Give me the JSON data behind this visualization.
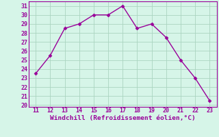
{
  "x": [
    11,
    12,
    13,
    14,
    15,
    16,
    17,
    18,
    19,
    20,
    21,
    22,
    23
  ],
  "y": [
    23.5,
    25.5,
    28.5,
    29.0,
    30.0,
    30.0,
    31.0,
    28.5,
    29.0,
    27.5,
    25.0,
    23.0,
    20.5
  ],
  "line_color": "#990099",
  "marker": "D",
  "marker_size": 2.5,
  "line_width": 1.0,
  "xlabel": "Windchill (Refroidissement éolien,°C)",
  "xlabel_color": "#990099",
  "xlabel_fontsize": 6.8,
  "background_color": "#d6f5e8",
  "plot_bg_color": "#d6f5e8",
  "grid_color": "#aad4c0",
  "tick_color": "#990099",
  "tick_fontsize": 6.0,
  "xlim": [
    10.5,
    23.5
  ],
  "ylim": [
    19.8,
    31.5
  ],
  "yticks": [
    20,
    21,
    22,
    23,
    24,
    25,
    26,
    27,
    28,
    29,
    30,
    31
  ],
  "xticks": [
    11,
    12,
    13,
    14,
    15,
    16,
    17,
    18,
    19,
    20,
    21,
    22,
    23
  ]
}
